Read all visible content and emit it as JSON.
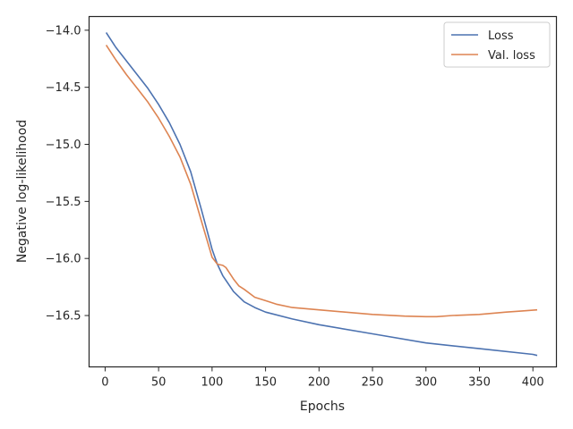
{
  "chart_data": {
    "type": "line",
    "title": "",
    "xlabel": "Epochs",
    "ylabel": "Negative log-likelihood",
    "xlim": [
      -15,
      422
    ],
    "ylim": [
      -16.95,
      -13.88
    ],
    "xticks": [
      0,
      50,
      100,
      150,
      200,
      250,
      300,
      350,
      400
    ],
    "xtick_labels": [
      "0",
      "50",
      "100",
      "150",
      "200",
      "250",
      "300",
      "350",
      "400"
    ],
    "yticks": [
      -14.0,
      -14.5,
      -15.0,
      -15.5,
      -16.0,
      -16.5
    ],
    "ytick_labels": [
      "−14.0",
      "−14.5",
      "−15.0",
      "−15.5",
      "−16.0",
      "−16.5"
    ],
    "grid": false,
    "legend": "top-right",
    "series": [
      {
        "name": "Loss",
        "color": "#4c72b0",
        "x": [
          1,
          10,
          20,
          30,
          40,
          50,
          60,
          70,
          80,
          90,
          100,
          105,
          110,
          120,
          130,
          140,
          150,
          175,
          200,
          250,
          300,
          350,
          400,
          404
        ],
        "y": [
          -14.02,
          -14.15,
          -14.27,
          -14.39,
          -14.51,
          -14.65,
          -14.81,
          -15.0,
          -15.24,
          -15.57,
          -15.92,
          -16.05,
          -16.15,
          -16.29,
          -16.38,
          -16.43,
          -16.47,
          -16.53,
          -16.58,
          -16.66,
          -16.74,
          -16.79,
          -16.84,
          -16.85
        ]
      },
      {
        "name": "Val. loss",
        "color": "#dd8452",
        "x": [
          1,
          10,
          20,
          30,
          40,
          50,
          60,
          70,
          80,
          90,
          100,
          105,
          110,
          113,
          120,
          125,
          130,
          140,
          150,
          160,
          175,
          200,
          250,
          280,
          300,
          310,
          325,
          350,
          375,
          390,
          404
        ],
        "y": [
          -14.13,
          -14.26,
          -14.39,
          -14.51,
          -14.63,
          -14.77,
          -14.93,
          -15.11,
          -15.35,
          -15.67,
          -15.99,
          -16.05,
          -16.06,
          -16.08,
          -16.18,
          -16.24,
          -16.27,
          -16.34,
          -16.37,
          -16.4,
          -16.43,
          -16.45,
          -16.49,
          -16.505,
          -16.51,
          -16.51,
          -16.5,
          -16.49,
          -16.47,
          -16.46,
          -16.45
        ]
      }
    ]
  }
}
